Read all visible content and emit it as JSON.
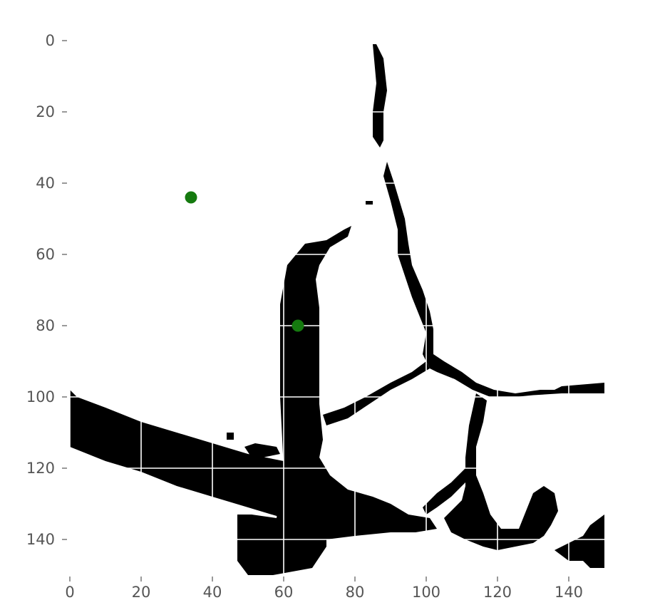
{
  "chart_data": {
    "type": "heatmap",
    "title": "",
    "xlabel": "",
    "ylabel": "",
    "xlim": [
      0,
      150
    ],
    "ylim": [
      150,
      0
    ],
    "y_axis_inverted": true,
    "grid": true,
    "colormap": {
      "0": "#ffffff",
      "1": "#000000"
    },
    "x_ticks": [
      0,
      20,
      40,
      60,
      80,
      100,
      120,
      140
    ],
    "x_tick_labels": [
      "0",
      "20",
      "40",
      "60",
      "80",
      "100",
      "120",
      "140"
    ],
    "y_ticks": [
      0,
      20,
      40,
      60,
      80,
      100,
      120,
      140
    ],
    "y_tick_labels": [
      "0",
      "20",
      "40",
      "60",
      "80",
      "100",
      "120",
      "140"
    ],
    "mask_regions": [
      {
        "name": "left-diagonal-band",
        "points": [
          [
            0,
            98
          ],
          [
            2,
            100
          ],
          [
            10,
            103
          ],
          [
            20,
            107
          ],
          [
            30,
            110
          ],
          [
            40,
            113
          ],
          [
            50,
            116
          ],
          [
            60,
            118
          ],
          [
            60,
            134
          ],
          [
            50,
            131
          ],
          [
            40,
            128
          ],
          [
            30,
            125
          ],
          [
            20,
            121
          ],
          [
            10,
            118
          ],
          [
            0,
            114
          ]
        ]
      },
      {
        "name": "central-vertical-blob",
        "points": [
          [
            59,
            74
          ],
          [
            61,
            63
          ],
          [
            66,
            57
          ],
          [
            72,
            56
          ],
          [
            77,
            53
          ],
          [
            79,
            52
          ],
          [
            78,
            55
          ],
          [
            73,
            58
          ],
          [
            70,
            63
          ],
          [
            69,
            67
          ],
          [
            70,
            75
          ],
          [
            70,
            90
          ],
          [
            70,
            102
          ],
          [
            71,
            112
          ],
          [
            70,
            117
          ],
          [
            73,
            122
          ],
          [
            78,
            126
          ],
          [
            85,
            128
          ],
          [
            90,
            130
          ],
          [
            95,
            133
          ],
          [
            101,
            134
          ],
          [
            103,
            137
          ],
          [
            97,
            138
          ],
          [
            90,
            138
          ],
          [
            80,
            139
          ],
          [
            72,
            140
          ],
          [
            72,
            142
          ],
          [
            68,
            148
          ],
          [
            57,
            150
          ],
          [
            50,
            150
          ],
          [
            47,
            146
          ],
          [
            47,
            140
          ],
          [
            47,
            133
          ],
          [
            51,
            133
          ],
          [
            58,
            134
          ],
          [
            60,
            120
          ],
          [
            59,
            100
          ],
          [
            59,
            82
          ]
        ]
      },
      {
        "name": "upper-thin-branch",
        "points": [
          [
            85,
            1
          ],
          [
            86,
            1
          ],
          [
            88,
            5
          ],
          [
            89,
            14
          ],
          [
            88,
            20
          ],
          [
            88,
            28
          ],
          [
            87,
            30
          ],
          [
            85,
            27
          ],
          [
            85,
            20
          ],
          [
            86,
            12
          ]
        ]
      },
      {
        "name": "middle-thin-branch",
        "points": [
          [
            89,
            34
          ],
          [
            91,
            40
          ],
          [
            94,
            50
          ],
          [
            95,
            57
          ],
          [
            96,
            63
          ],
          [
            99,
            70
          ],
          [
            101,
            76
          ],
          [
            102,
            81
          ],
          [
            102,
            88
          ],
          [
            105,
            90
          ],
          [
            110,
            93
          ],
          [
            114,
            96
          ],
          [
            119,
            98
          ],
          [
            125,
            99
          ],
          [
            132,
            98
          ],
          [
            136,
            98
          ],
          [
            138,
            97
          ],
          [
            150,
            96
          ],
          [
            150,
            99
          ],
          [
            138,
            99
          ],
          [
            130,
            99.5
          ],
          [
            125,
            100
          ],
          [
            118,
            100
          ],
          [
            113,
            98
          ],
          [
            108,
            95
          ],
          [
            103,
            93
          ],
          [
            101,
            92
          ],
          [
            99,
            88
          ],
          [
            100,
            82
          ],
          [
            98,
            77
          ],
          [
            96,
            72
          ],
          [
            94,
            66
          ],
          [
            92,
            60
          ],
          [
            92,
            53
          ],
          [
            90,
            45
          ],
          [
            88,
            38
          ]
        ]
      },
      {
        "name": "lower-diagonal-branch",
        "points": [
          [
            100,
            90
          ],
          [
            101,
            92
          ],
          [
            96,
            95
          ],
          [
            90,
            98
          ],
          [
            84,
            102
          ],
          [
            78,
            106
          ],
          [
            72,
            108
          ],
          [
            71,
            105
          ],
          [
            77,
            103
          ],
          [
            83,
            100
          ],
          [
            90,
            96
          ],
          [
            96,
            93
          ]
        ]
      },
      {
        "name": "right-vertical-branch",
        "points": [
          [
            114,
            99
          ],
          [
            117,
            101
          ],
          [
            116,
            107
          ],
          [
            114,
            114
          ],
          [
            114,
            122
          ],
          [
            116,
            127
          ],
          [
            118,
            133
          ],
          [
            121,
            137
          ],
          [
            126,
            137
          ],
          [
            128,
            132
          ],
          [
            130,
            127
          ],
          [
            133,
            125
          ],
          [
            136,
            127
          ],
          [
            137,
            132
          ],
          [
            135,
            136
          ],
          [
            133,
            139
          ],
          [
            130,
            141
          ],
          [
            125,
            142
          ],
          [
            120,
            143
          ],
          [
            116,
            142
          ],
          [
            111,
            140
          ],
          [
            107,
            138
          ],
          [
            105,
            134
          ],
          [
            107,
            132
          ],
          [
            110,
            129
          ],
          [
            111,
            125
          ],
          [
            111,
            117
          ],
          [
            112,
            108
          ]
        ]
      },
      {
        "name": "right-lower-diagonal",
        "points": [
          [
            111,
            120
          ],
          [
            111,
            124
          ],
          [
            107,
            128
          ],
          [
            103,
            131
          ],
          [
            100,
            133
          ],
          [
            99,
            131
          ],
          [
            103,
            127
          ],
          [
            107,
            124
          ]
        ]
      },
      {
        "name": "bottom-right-corner",
        "points": [
          [
            136,
            143
          ],
          [
            140,
            141
          ],
          [
            144,
            139
          ],
          [
            146,
            136
          ],
          [
            150,
            133
          ],
          [
            150,
            148
          ],
          [
            146,
            148
          ],
          [
            144,
            146
          ],
          [
            140,
            146
          ]
        ]
      },
      {
        "name": "small-left-fragment",
        "points": [
          [
            49,
            114
          ],
          [
            52,
            113
          ],
          [
            58,
            114
          ],
          [
            59,
            116
          ],
          [
            54,
            117
          ],
          [
            51,
            117
          ]
        ]
      },
      {
        "name": "speck-a",
        "points": [
          [
            44,
            110
          ],
          [
            46,
            110
          ],
          [
            46,
            112
          ],
          [
            44,
            112
          ]
        ]
      },
      {
        "name": "speck-b",
        "points": [
          [
            83,
            45
          ],
          [
            85,
            45
          ],
          [
            85,
            46
          ],
          [
            83,
            46
          ]
        ]
      }
    ],
    "markers": [
      {
        "name": "point-1",
        "x": 34,
        "y": 44,
        "color": "#157a0f"
      },
      {
        "name": "point-2",
        "x": 64,
        "y": 80,
        "color": "#157a0f"
      }
    ]
  }
}
